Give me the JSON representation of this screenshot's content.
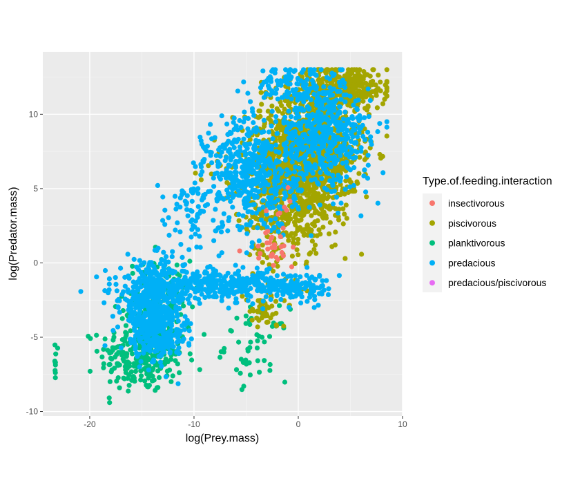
{
  "chart_data": {
    "type": "scatter",
    "title": "",
    "xlabel": "log(Prey.mass)",
    "ylabel": "log(Predator.mass)",
    "xlim": [
      -24.5,
      10
    ],
    "ylim": [
      -10.3,
      14.2
    ],
    "x_ticks": [
      -20,
      -10,
      0,
      10
    ],
    "y_ticks": [
      -10,
      -5,
      0,
      5,
      10
    ],
    "x_tick_labels": [
      "-20",
      "-10",
      "0",
      "10"
    ],
    "y_tick_labels": [
      "-10",
      "-5",
      "0",
      "5",
      "10"
    ],
    "grid": true,
    "legend": {
      "title": "Type.of.feeding.interaction",
      "placement": "right"
    },
    "series": [
      {
        "name": "insectivorous",
        "color": "#F8766D",
        "clusters": [
          {
            "cx": -2.5,
            "cy": 0.8,
            "sx": 1.0,
            "sy": 0.6,
            "n": 25
          },
          {
            "cx": -2.0,
            "cy": 3.0,
            "sx": 0.6,
            "sy": 0.8,
            "n": 10
          }
        ]
      },
      {
        "name": "piscivorous",
        "color": "#A3A500",
        "clusters": [
          {
            "cx": 1.5,
            "cy": 7.5,
            "sx": 2.2,
            "sy": 2.4,
            "n": 1100
          },
          {
            "cx": -1.5,
            "cy": 5.0,
            "sx": 1.8,
            "sy": 2.6,
            "n": 500
          },
          {
            "cx": 4.5,
            "cy": 11.8,
            "sx": 2.0,
            "sy": 0.7,
            "n": 300
          },
          {
            "cx": -3.2,
            "cy": -3.2,
            "sx": 1.0,
            "sy": 0.6,
            "n": 50
          },
          {
            "cx": -6.5,
            "cy": 7.0,
            "sx": 1.5,
            "sy": 1.5,
            "n": 25
          }
        ]
      },
      {
        "name": "planktivorous",
        "color": "#00BF7D",
        "clusters": [
          {
            "cx": -15.0,
            "cy": -6.3,
            "sx": 2.0,
            "sy": 1.2,
            "n": 260
          },
          {
            "cx": -13.5,
            "cy": -3.0,
            "sx": 1.6,
            "sy": 1.6,
            "n": 160
          },
          {
            "cx": -4.0,
            "cy": -5.5,
            "sx": 1.5,
            "sy": 1.2,
            "n": 50
          },
          {
            "cx": -23.3,
            "cy": -7.0,
            "sx": 0.05,
            "sy": 0.8,
            "n": 9
          }
        ]
      },
      {
        "name": "predacious",
        "color": "#00B0F6",
        "clusters": [
          {
            "cx": -14.0,
            "cy": -3.0,
            "sx": 1.5,
            "sy": 1.5,
            "n": 500
          },
          {
            "cx": -7.5,
            "cy": -1.5,
            "sx": 4.0,
            "sy": 0.45,
            "n": 380
          },
          {
            "cx": -4.5,
            "cy": 6.0,
            "sx": 2.2,
            "sy": 2.0,
            "n": 500
          },
          {
            "cx": 2.5,
            "cy": 8.5,
            "sx": 2.2,
            "sy": 1.8,
            "n": 500
          },
          {
            "cx": 0.5,
            "cy": -1.6,
            "sx": 1.6,
            "sy": 0.5,
            "n": 90
          },
          {
            "cx": -0.5,
            "cy": 12.0,
            "sx": 1.8,
            "sy": 0.6,
            "n": 110
          },
          {
            "cx": -10.5,
            "cy": 3.5,
            "sx": 1.5,
            "sy": 1.5,
            "n": 70
          },
          {
            "cx": -13.0,
            "cy": -5.0,
            "sx": 1.2,
            "sy": 0.7,
            "n": 120
          }
        ]
      },
      {
        "name": "predacious/piscivorous",
        "color": "#E76BF3",
        "clusters": []
      }
    ]
  }
}
